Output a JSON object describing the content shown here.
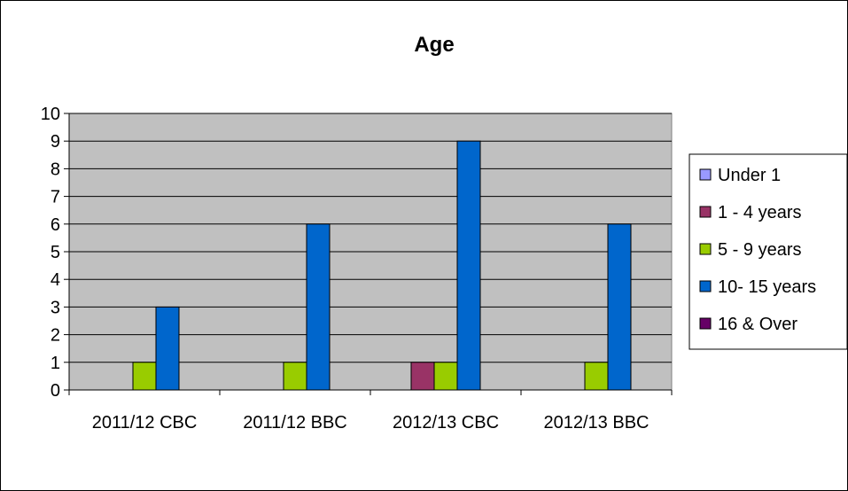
{
  "chart_data": {
    "type": "bar",
    "title": "Age",
    "xlabel": "",
    "ylabel": "",
    "ylim": [
      0,
      10
    ],
    "yticks": [
      "0",
      "1",
      "2",
      "3",
      "4",
      "5",
      "6",
      "7",
      "8",
      "9",
      "10"
    ],
    "grid": true,
    "legend_position": "right",
    "categories": [
      "2011/12 CBC",
      "2011/12 BBC",
      "2012/13 CBC",
      "2012/13 BBC"
    ],
    "series": [
      {
        "name": "Under 1",
        "color": "#9999FF",
        "values": [
          0,
          0,
          0,
          0
        ]
      },
      {
        "name": "1 - 4 years",
        "color": "#993366",
        "values": [
          0,
          0,
          1,
          0
        ]
      },
      {
        "name": "5 - 9 years",
        "color": "#99CC00",
        "values": [
          1,
          1,
          1,
          1
        ]
      },
      {
        "name": "10- 15 years",
        "color": "#0066CC",
        "values": [
          3,
          6,
          9,
          6
        ]
      },
      {
        "name": "16 & Over",
        "color": "#660066",
        "values": [
          0,
          0,
          0,
          0
        ]
      }
    ],
    "plot_background": "#C0C0C0"
  }
}
